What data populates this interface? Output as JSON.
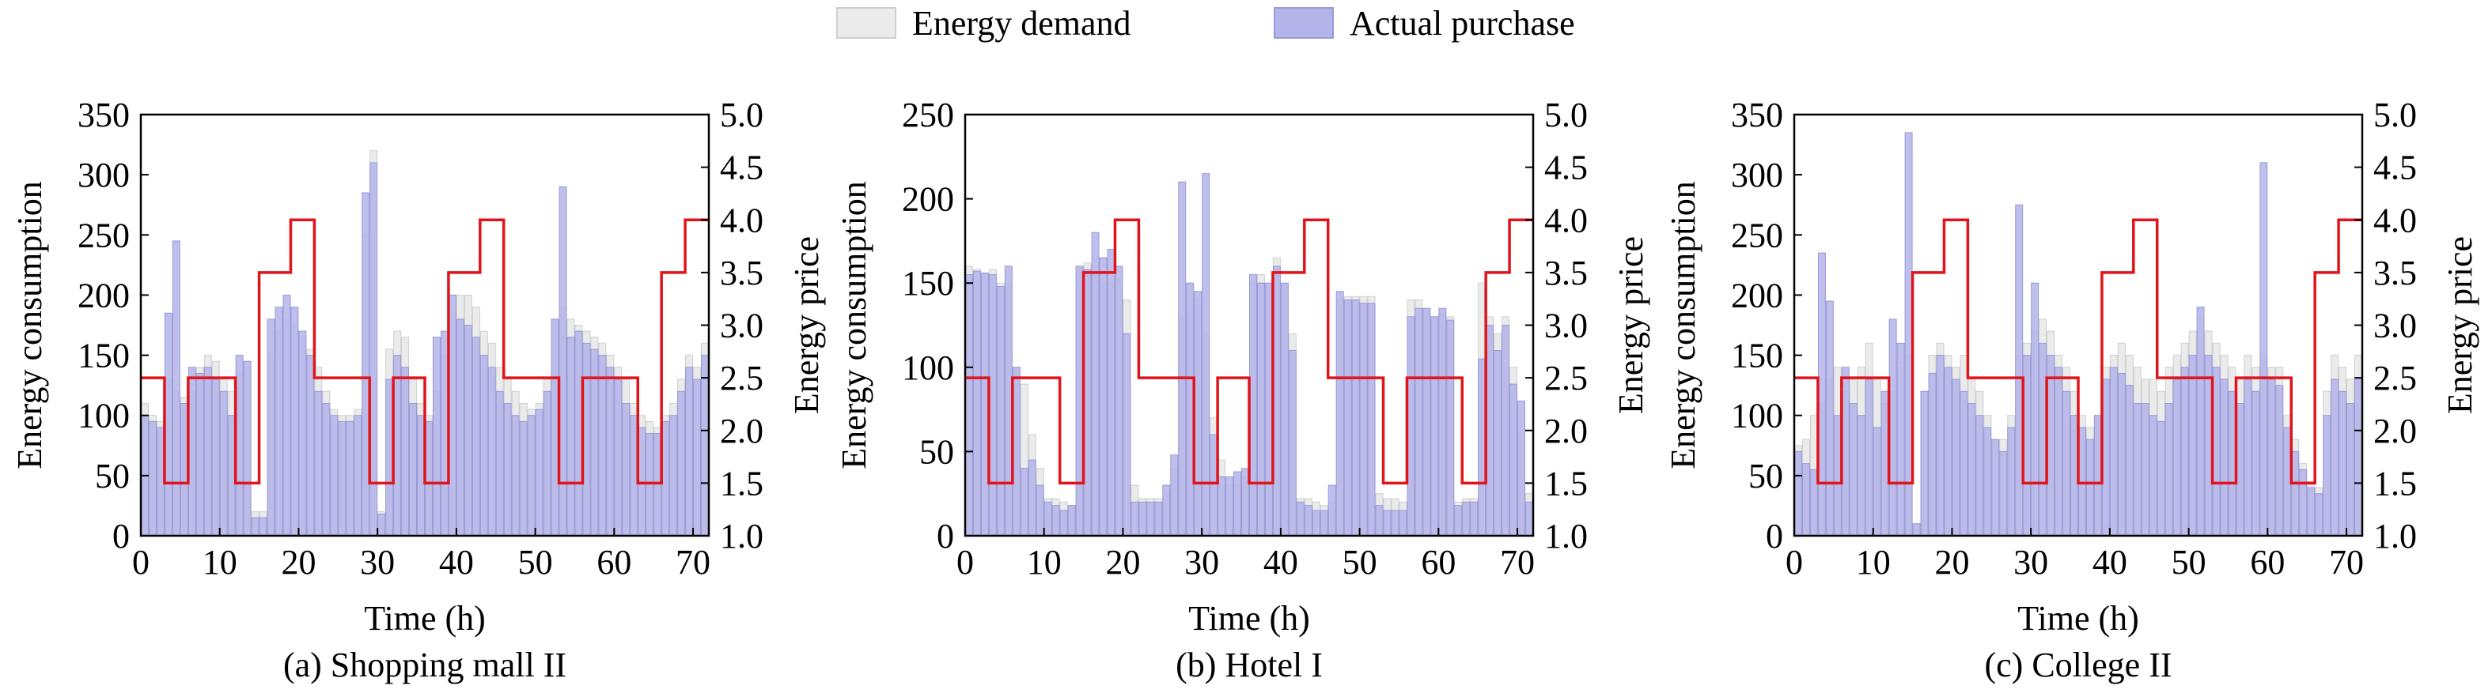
{
  "legend": {
    "demand_label": "Energy demand",
    "purchase_label": "Actual purchase",
    "demand_color": "#ebebeb",
    "demand_edge": "#cfcfcf",
    "purchase_color": "#b4b4ea",
    "purchase_edge": "#9a9ad8",
    "price_color": "#e0141a"
  },
  "chart_data": [
    {
      "type": "bar",
      "caption": "(a) Shopping mall II",
      "xlabel": "Time (h)",
      "ylabel": "Energy consumption",
      "y2label": "Energy price",
      "xlim": [
        0,
        72
      ],
      "ylim": [
        0,
        350
      ],
      "y2lim": [
        1.0,
        5.0
      ],
      "xticks": [
        0,
        10,
        20,
        30,
        40,
        50,
        60,
        70
      ],
      "yticks": [
        0,
        50,
        100,
        150,
        200,
        250,
        300,
        350
      ],
      "y2ticks": [
        "1.0",
        "1.5",
        "2.0",
        "2.5",
        "3.0",
        "3.5",
        "4.0",
        "4.5",
        "5.0"
      ],
      "series": [
        {
          "name": "Energy demand",
          "values": [
            110,
            100,
            95,
            130,
            120,
            115,
            120,
            140,
            150,
            145,
            130,
            120,
            135,
            140,
            20,
            20,
            150,
            170,
            180,
            175,
            165,
            155,
            140,
            120,
            105,
            100,
            100,
            105,
            250,
            320,
            20,
            155,
            170,
            165,
            130,
            110,
            100,
            120,
            150,
            185,
            200,
            200,
            190,
            170,
            160,
            140,
            130,
            120,
            110,
            105,
            110,
            130,
            180,
            190,
            180,
            175,
            170,
            165,
            160,
            150,
            140,
            130,
            110,
            100,
            95,
            90,
            100,
            110,
            130,
            150,
            140,
            160
          ]
        },
        {
          "name": "Actual purchase",
          "values": [
            100,
            95,
            90,
            185,
            245,
            110,
            140,
            135,
            140,
            130,
            120,
            100,
            150,
            145,
            15,
            15,
            180,
            190,
            200,
            190,
            170,
            150,
            120,
            110,
            100,
            95,
            95,
            100,
            285,
            310,
            18,
            130,
            150,
            140,
            110,
            100,
            95,
            165,
            170,
            200,
            180,
            175,
            165,
            150,
            140,
            120,
            110,
            100,
            95,
            100,
            105,
            120,
            180,
            290,
            165,
            170,
            160,
            155,
            150,
            140,
            130,
            110,
            100,
            90,
            85,
            85,
            95,
            100,
            120,
            140,
            130,
            150
          ]
        },
        {
          "name": "price",
          "values": [
            2.5,
            2.5,
            2.5,
            1.5,
            1.5,
            1.5,
            2.5,
            2.5,
            2.5,
            2.5,
            2.5,
            2.5,
            1.5,
            1.5,
            1.5,
            3.5,
            3.5,
            3.5,
            3.5,
            4.0,
            4.0,
            4.0,
            2.5,
            2.5,
            2.5,
            2.5,
            2.5,
            2.5,
            2.5,
            1.5,
            1.5,
            1.5,
            2.5,
            2.5,
            2.5,
            2.5,
            1.5,
            1.5,
            1.5,
            3.5,
            3.5,
            3.5,
            3.5,
            4.0,
            4.0,
            4.0,
            2.5,
            2.5,
            2.5,
            2.5,
            2.5,
            2.5,
            2.5,
            1.5,
            1.5,
            1.5,
            2.5,
            2.5,
            2.5,
            2.5,
            2.5,
            2.5,
            2.5,
            1.5,
            1.5,
            1.5,
            3.5,
            3.5,
            3.5,
            4.0,
            4.0,
            4.0
          ]
        }
      ]
    },
    {
      "type": "bar",
      "caption": "(b) Hotel I",
      "xlabel": "Time (h)",
      "ylabel": "Energy consumption",
      "y2label": "Energy price",
      "xlim": [
        0,
        72
      ],
      "ylim": [
        0,
        250
      ],
      "y2lim": [
        1.0,
        5.0
      ],
      "xticks": [
        0,
        10,
        20,
        30,
        40,
        50,
        60,
        70
      ],
      "yticks": [
        0,
        50,
        100,
        150,
        200,
        250
      ],
      "y2ticks": [
        "1.0",
        "1.5",
        "2.0",
        "2.5",
        "3.0",
        "3.5",
        "4.0",
        "4.5",
        "5.0"
      ],
      "series": [
        {
          "name": "Energy demand",
          "values": [
            160,
            158,
            155,
            158,
            150,
            150,
            100,
            90,
            60,
            40,
            22,
            22,
            20,
            18,
            160,
            162,
            160,
            150,
            150,
            152,
            140,
            30,
            22,
            22,
            22,
            25,
            40,
            130,
            150,
            140,
            120,
            70,
            45,
            30,
            30,
            35,
            150,
            155,
            150,
            165,
            150,
            120,
            22,
            22,
            20,
            18,
            20,
            140,
            142,
            142,
            142,
            142,
            25,
            22,
            22,
            20,
            140,
            140,
            135,
            130,
            132,
            130,
            20,
            22,
            22,
            150,
            130,
            120,
            130,
            100,
            60,
            25
          ]
        },
        {
          "name": "Actual purchase",
          "values": [
            155,
            157,
            156,
            155,
            148,
            160,
            100,
            40,
            45,
            30,
            20,
            18,
            15,
            18,
            160,
            158,
            180,
            165,
            170,
            160,
            120,
            20,
            20,
            20,
            20,
            30,
            48,
            210,
            150,
            145,
            215,
            60,
            35,
            35,
            38,
            40,
            155,
            150,
            150,
            160,
            150,
            110,
            20,
            18,
            15,
            15,
            30,
            145,
            140,
            140,
            138,
            138,
            18,
            15,
            15,
            15,
            130,
            135,
            135,
            130,
            135,
            128,
            18,
            20,
            20,
            105,
            125,
            110,
            125,
            90,
            80,
            20
          ]
        },
        {
          "name": "price",
          "values": [
            2.5,
            2.5,
            2.5,
            1.5,
            1.5,
            1.5,
            2.5,
            2.5,
            2.5,
            2.5,
            2.5,
            2.5,
            1.5,
            1.5,
            1.5,
            3.5,
            3.5,
            3.5,
            3.5,
            4.0,
            4.0,
            4.0,
            2.5,
            2.5,
            2.5,
            2.5,
            2.5,
            2.5,
            2.5,
            1.5,
            1.5,
            1.5,
            2.5,
            2.5,
            2.5,
            2.5,
            1.5,
            1.5,
            1.5,
            3.5,
            3.5,
            3.5,
            3.5,
            4.0,
            4.0,
            4.0,
            2.5,
            2.5,
            2.5,
            2.5,
            2.5,
            2.5,
            2.5,
            1.5,
            1.5,
            1.5,
            2.5,
            2.5,
            2.5,
            2.5,
            2.5,
            2.5,
            2.5,
            1.5,
            1.5,
            1.5,
            3.5,
            3.5,
            3.5,
            4.0,
            4.0,
            4.0
          ]
        }
      ]
    },
    {
      "type": "bar",
      "caption": "(c) College II",
      "xlabel": "Time (h)",
      "ylabel": "Energy consumption",
      "y2label": "Energy price",
      "xlim": [
        0,
        72
      ],
      "ylim": [
        0,
        350
      ],
      "y2lim": [
        1.0,
        5.0
      ],
      "xticks": [
        0,
        10,
        20,
        30,
        40,
        50,
        60,
        70
      ],
      "yticks": [
        0,
        50,
        100,
        150,
        200,
        250,
        300,
        350
      ],
      "y2ticks": [
        "1.0",
        "1.5",
        "2.0",
        "2.5",
        "3.0",
        "3.5",
        "4.0",
        "4.5",
        "5.0"
      ],
      "series": [
        {
          "name": "Energy demand",
          "values": [
            75,
            80,
            100,
            110,
            130,
            140,
            120,
            130,
            140,
            160,
            130,
            110,
            120,
            140,
            150,
            10,
            120,
            150,
            160,
            150,
            140,
            150,
            130,
            120,
            100,
            80,
            80,
            100,
            150,
            160,
            170,
            180,
            170,
            150,
            140,
            120,
            100,
            90,
            100,
            140,
            150,
            160,
            150,
            140,
            130,
            130,
            120,
            140,
            150,
            160,
            170,
            180,
            170,
            160,
            150,
            140,
            130,
            150,
            140,
            150,
            140,
            140,
            100,
            80,
            60,
            45,
            40,
            120,
            150,
            140,
            130,
            150
          ]
        },
        {
          "name": "Actual purchase",
          "values": [
            70,
            60,
            55,
            235,
            195,
            100,
            140,
            110,
            100,
            130,
            90,
            120,
            180,
            160,
            335,
            10,
            120,
            135,
            150,
            140,
            130,
            120,
            110,
            100,
            90,
            80,
            70,
            90,
            275,
            150,
            210,
            160,
            150,
            140,
            120,
            100,
            90,
            80,
            100,
            130,
            140,
            135,
            125,
            110,
            110,
            100,
            95,
            110,
            130,
            140,
            150,
            190,
            150,
            140,
            130,
            120,
            110,
            130,
            120,
            310,
            130,
            125,
            90,
            70,
            55,
            40,
            35,
            100,
            130,
            120,
            110,
            130
          ]
        },
        {
          "name": "price",
          "values": [
            2.5,
            2.5,
            2.5,
            1.5,
            1.5,
            1.5,
            2.5,
            2.5,
            2.5,
            2.5,
            2.5,
            2.5,
            1.5,
            1.5,
            1.5,
            3.5,
            3.5,
            3.5,
            3.5,
            4.0,
            4.0,
            4.0,
            2.5,
            2.5,
            2.5,
            2.5,
            2.5,
            2.5,
            2.5,
            1.5,
            1.5,
            1.5,
            2.5,
            2.5,
            2.5,
            2.5,
            1.5,
            1.5,
            1.5,
            3.5,
            3.5,
            3.5,
            3.5,
            4.0,
            4.0,
            4.0,
            2.5,
            2.5,
            2.5,
            2.5,
            2.5,
            2.5,
            2.5,
            1.5,
            1.5,
            1.5,
            2.5,
            2.5,
            2.5,
            2.5,
            2.5,
            2.5,
            2.5,
            1.5,
            1.5,
            1.5,
            3.5,
            3.5,
            3.5,
            4.0,
            4.0,
            4.0
          ]
        }
      ]
    }
  ]
}
